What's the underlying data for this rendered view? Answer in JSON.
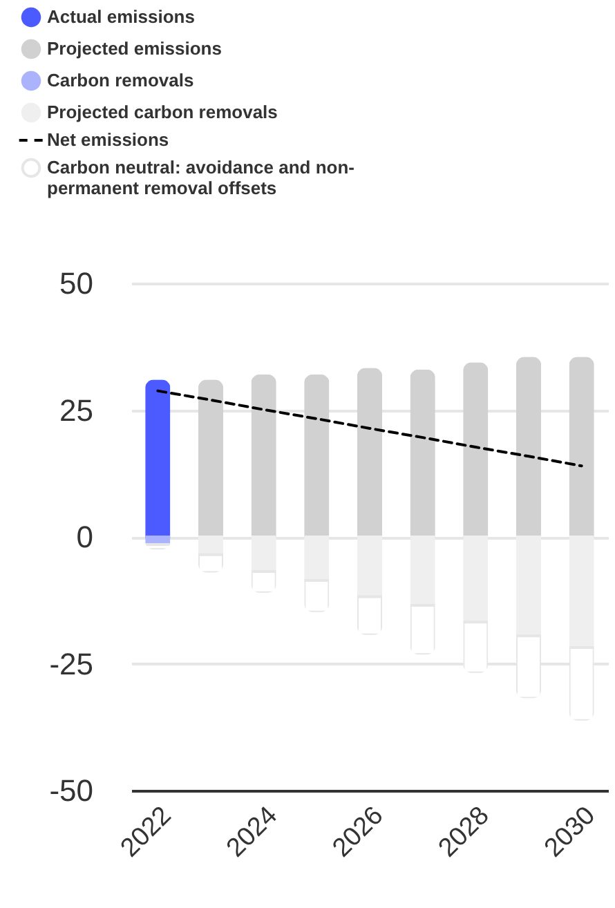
{
  "chart_data": {
    "type": "bar",
    "stacked": true,
    "legend": "top left",
    "grid": "y",
    "categories": [
      "2022",
      null,
      "2024",
      null,
      "2026",
      null,
      "2028",
      null,
      "2030"
    ],
    "ylim": [
      -50,
      50
    ],
    "yticks": [
      -50,
      -25,
      0,
      25,
      50
    ],
    "series": [
      {
        "name": "Actual emissions",
        "color": "#4c5bff",
        "values": [
          31,
          null,
          null,
          null,
          null,
          null,
          null,
          null,
          null
        ]
      },
      {
        "name": "Projected emissions",
        "color": "#d1d1d1",
        "values": [
          null,
          31,
          32,
          32,
          33.3,
          33,
          34.4,
          35.5,
          35.5
        ]
      },
      {
        "name": "Carbon removals",
        "color": "#aab3fc",
        "values": [
          -1.5,
          null,
          null,
          null,
          null,
          null,
          null,
          null,
          null
        ]
      },
      {
        "name": "Projected carbon removals",
        "color": "#efefef",
        "values": [
          null,
          -3.5,
          -6.8,
          -8.6,
          -11.8,
          -13.5,
          -16.8,
          -19.5,
          -21.8
        ]
      },
      {
        "name": "Net emissions",
        "type": "line",
        "line_style": "dashed",
        "color": "#000000",
        "values": [
          28.8,
          27,
          25.1,
          23.3,
          21.4,
          19.6,
          17.7,
          15.9,
          14
        ]
      },
      {
        "name": "Carbon neutral: avoidance and non-permanent removal offsets",
        "color": "#ffffff",
        "values": [
          -1,
          -3.5,
          -4.2,
          -6.2,
          -7.5,
          -9.7,
          -10,
          -12.3,
          -14.4
        ]
      }
    ]
  }
}
